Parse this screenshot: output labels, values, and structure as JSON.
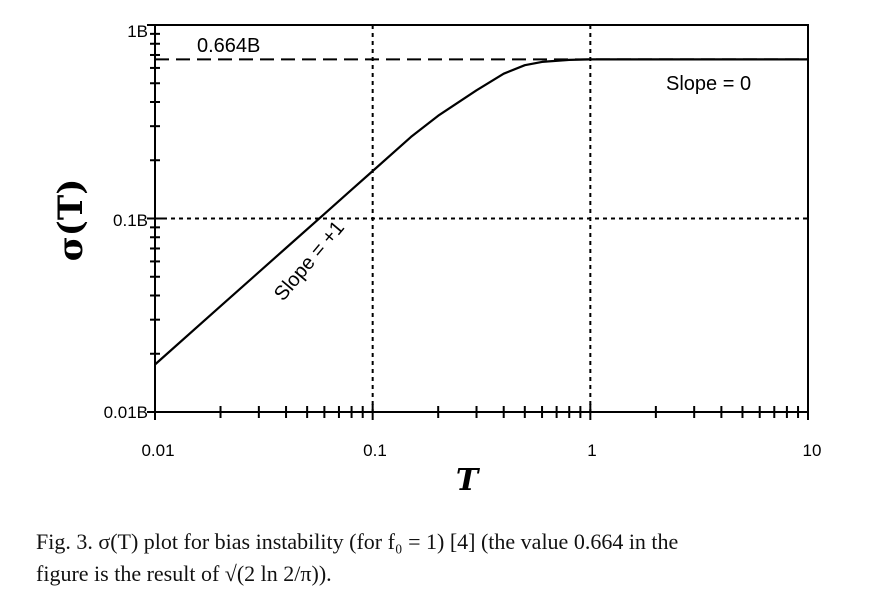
{
  "chart_data": {
    "type": "line",
    "x_scale": "log",
    "y_scale": "log",
    "xlim": [
      0.01,
      10
    ],
    "ylim": [
      0.01,
      1
    ],
    "x_ticks": [
      "0.01",
      "0.1",
      "1",
      "10"
    ],
    "y_ticks": [
      "0.01B",
      "0.1B",
      "1B"
    ],
    "xlabel": "T",
    "ylabel": "σ(T)",
    "grid": "dotted at x=0.1, x=1, y=0.1",
    "reference_line": {
      "y": 0.664,
      "label": "0.664B",
      "style": "dashed"
    },
    "annotations": [
      "Slope = +1",
      "Slope = 0",
      "0.664B"
    ],
    "series": [
      {
        "x": [
          0.01,
          0.02,
          0.04,
          0.06,
          0.08,
          0.1,
          0.15,
          0.2,
          0.3,
          0.4,
          0.5,
          0.6,
          0.8,
          1,
          2,
          5,
          10
        ],
        "y": [
          0.0176,
          0.0352,
          0.0704,
          0.1056,
          0.1408,
          0.176,
          0.264,
          0.34,
          0.46,
          0.56,
          0.62,
          0.645,
          0.66,
          0.664,
          0.664,
          0.664,
          0.664
        ]
      }
    ]
  },
  "caption": {
    "line1": "Fig. 3.   σ(T) plot for bias instability (for f₀ = 1) [4] (the value 0.664 in the",
    "line2": "figure is the result of √(2 ln 2/π))."
  }
}
